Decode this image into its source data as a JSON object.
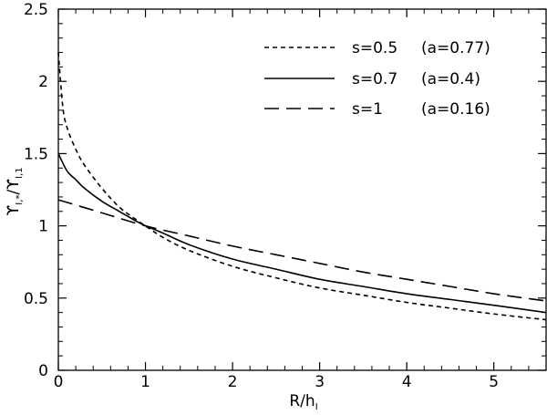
{
  "chart_data": {
    "type": "line",
    "title": "",
    "xlabel": "R/h",
    "xlabel_sub": "I",
    "ylabel_num": "ϒ",
    "ylabel_num_sub": "I,*",
    "ylabel_den": "ϒ",
    "ylabel_den_sub": "I,1",
    "xlim": [
      0,
      5.6
    ],
    "ylim": [
      0,
      2.5
    ],
    "x_ticks": [
      0,
      1,
      2,
      3,
      4,
      5
    ],
    "x_tick_labels": [
      "0",
      "1",
      "2",
      "3",
      "4",
      "5"
    ],
    "y_ticks": [
      0,
      0.5,
      1,
      1.5,
      2,
      2.5
    ],
    "y_tick_labels": [
      "0",
      "0.5",
      "1",
      "1.5",
      "2",
      "2.5"
    ],
    "grid": false,
    "legend_position": "top-right",
    "series": [
      {
        "name": "s=0.5",
        "param": "(a=0.77)",
        "dash": "dotted",
        "x": [
          0,
          0.05,
          0.1,
          0.2,
          0.3,
          0.5,
          0.7,
          0.9,
          1.0,
          1.2,
          1.5,
          2.0,
          2.5,
          3.0,
          3.5,
          4.0,
          4.5,
          5.0,
          5.6
        ],
        "y": [
          2.2,
          1.83,
          1.68,
          1.53,
          1.42,
          1.26,
          1.13,
          1.04,
          1.0,
          0.92,
          0.83,
          0.72,
          0.64,
          0.57,
          0.52,
          0.47,
          0.43,
          0.39,
          0.35
        ]
      },
      {
        "name": "s=0.7",
        "param": "(a=0.4)",
        "dash": "solid",
        "x": [
          0,
          0.1,
          0.2,
          0.3,
          0.5,
          0.7,
          0.9,
          1.0,
          1.2,
          1.5,
          2.0,
          2.5,
          3.0,
          3.5,
          4.0,
          4.5,
          5.0,
          5.6
        ],
        "y": [
          1.5,
          1.38,
          1.32,
          1.26,
          1.17,
          1.1,
          1.03,
          1.0,
          0.95,
          0.87,
          0.77,
          0.7,
          0.63,
          0.58,
          0.53,
          0.49,
          0.45,
          0.4
        ],
        "label_index": 1
      },
      {
        "name": "s=1",
        "param": "(a=0.16)",
        "dash": "dashed",
        "x": [
          0,
          0.5,
          1.0,
          1.5,
          2.0,
          2.5,
          3.0,
          3.5,
          4.0,
          4.5,
          5.0,
          5.6
        ],
        "y": [
          1.18,
          1.09,
          1.0,
          0.93,
          0.86,
          0.8,
          0.74,
          0.68,
          0.63,
          0.58,
          0.53,
          0.48
        ]
      }
    ]
  }
}
